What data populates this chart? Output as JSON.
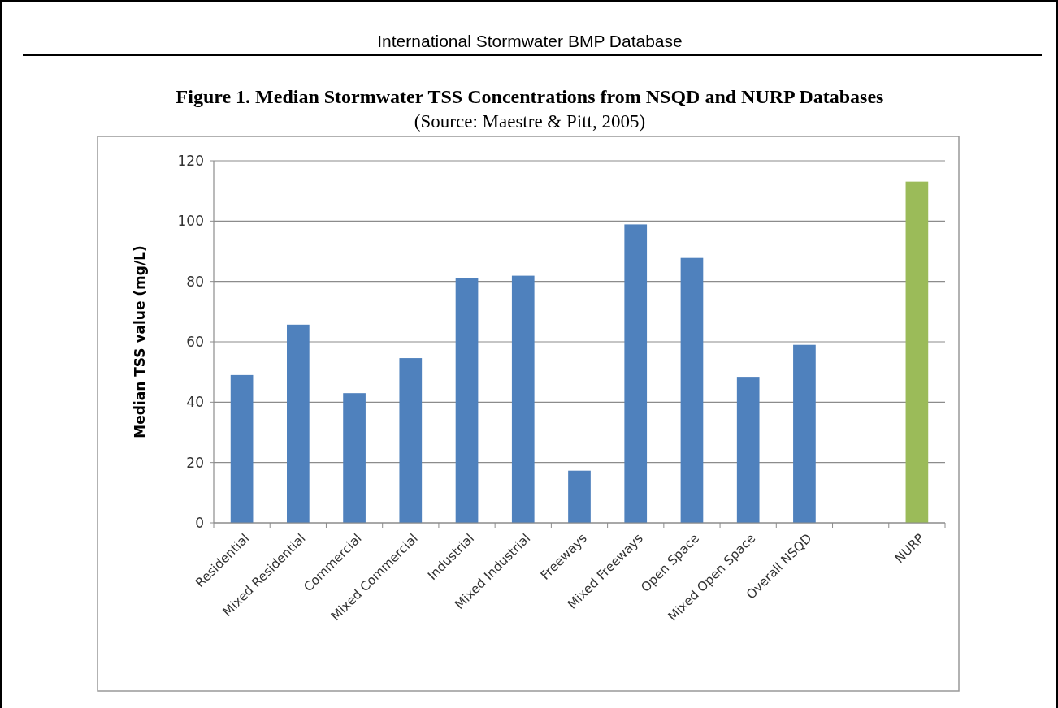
{
  "chart_data": {
    "type": "bar",
    "title": "Figure 1. Median Stormwater TSS Concentrations from NSQD and NURP Databases",
    "subtitle": "(Source:  Maestre & Pitt, 2005)",
    "annotations": [
      "International Stormwater BMP Database"
    ],
    "ylabel": "Median TSS value (mg/L)",
    "categories": [
      "Residential",
      "Mixed Residential",
      "Commercial",
      "Mixed Commercial",
      "Industrial",
      "Mixed Industrial",
      "Freeways",
      "Mixed Freeways",
      "Open Space",
      "Mixed Open Space",
      "Overall NSQD",
      null,
      "NURP"
    ],
    "values": [
      49,
      65.7,
      43,
      54.6,
      81,
      81.9,
      17.3,
      98.9,
      87.8,
      48.4,
      59,
      null,
      113.1
    ],
    "colors": [
      "#4f81bd",
      "#4f81bd",
      "#4f81bd",
      "#4f81bd",
      "#4f81bd",
      "#4f81bd",
      "#4f81bd",
      "#4f81bd",
      "#4f81bd",
      "#4f81bd",
      "#4f81bd",
      null,
      "#9bbb59"
    ],
    "ylim": [
      0,
      120
    ],
    "yticks": [
      0,
      20,
      40,
      60,
      80,
      100,
      120
    ],
    "grid": "y"
  }
}
